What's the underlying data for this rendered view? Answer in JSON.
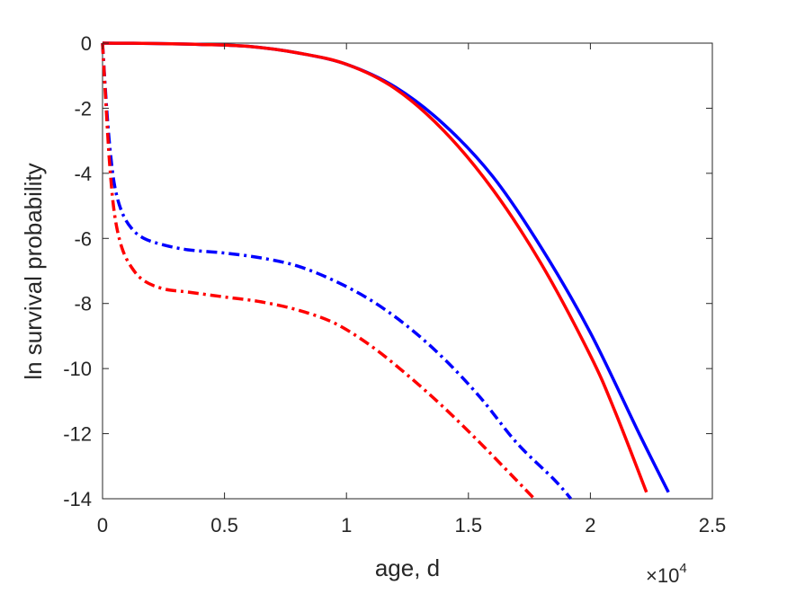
{
  "chart_data": {
    "type": "line",
    "title": "",
    "xlabel": "age, d",
    "ylabel": "ln survival probability",
    "x_multiplier_label": "×10",
    "x_multiplier_exponent": "4",
    "xlim": [
      0,
      25000
    ],
    "ylim": [
      -14,
      0
    ],
    "xticks": [
      0,
      5000,
      10000,
      15000,
      20000,
      25000
    ],
    "xtick_labels": [
      "0",
      "0.5",
      "1",
      "1.5",
      "2",
      "2.5"
    ],
    "yticks": [
      0,
      -2,
      -4,
      -6,
      -8,
      -10,
      -12,
      -14
    ],
    "ytick_labels": [
      "0",
      "-2",
      "-4",
      "-6",
      "-8",
      "-10",
      "-12",
      "-14"
    ],
    "grid": false,
    "legend": "none",
    "series": [
      {
        "color": "#0000ff",
        "style": "solid",
        "x": [
          0,
          2000,
          4000,
          6000,
          8000,
          10000,
          12000,
          14000,
          16000,
          18000,
          20000,
          22000,
          23200
        ],
        "y": [
          0,
          -0.01,
          -0.04,
          -0.1,
          -0.3,
          -0.65,
          -1.35,
          -2.5,
          -4.1,
          -6.3,
          -8.9,
          -12.0,
          -13.8
        ]
      },
      {
        "color": "#ff0000",
        "style": "solid",
        "x": [
          0,
          2000,
          4000,
          6000,
          8000,
          10000,
          12000,
          14000,
          16000,
          18000,
          20000,
          21000,
          22300
        ],
        "y": [
          0,
          -0.01,
          -0.04,
          -0.1,
          -0.3,
          -0.65,
          -1.4,
          -2.7,
          -4.5,
          -6.8,
          -9.6,
          -11.3,
          -13.8
        ]
      },
      {
        "color": "#0000ff",
        "style": "dashdot",
        "x": [
          0,
          150,
          300,
          500,
          800,
          1200,
          1700,
          2500,
          3500,
          5000,
          6500,
          8000,
          9500,
          11000,
          12500,
          14000,
          15500,
          17000,
          18500,
          19200
        ],
        "y": [
          0,
          -1.8,
          -3.2,
          -4.4,
          -5.2,
          -5.7,
          -6.0,
          -6.2,
          -6.35,
          -6.45,
          -6.6,
          -6.85,
          -7.3,
          -7.9,
          -8.7,
          -9.7,
          -10.9,
          -12.3,
          -13.4,
          -14.0
        ]
      },
      {
        "color": "#ff0000",
        "style": "dashdot",
        "x": [
          0,
          150,
          300,
          500,
          800,
          1200,
          1700,
          2500,
          3500,
          5000,
          6500,
          8000,
          9500,
          11000,
          12500,
          14000,
          15500,
          16800,
          17700
        ],
        "y": [
          0,
          -2.0,
          -3.8,
          -5.3,
          -6.3,
          -6.9,
          -7.3,
          -7.55,
          -7.65,
          -7.8,
          -7.95,
          -8.2,
          -8.6,
          -9.3,
          -10.2,
          -11.2,
          -12.3,
          -13.3,
          -14.0
        ]
      }
    ]
  }
}
